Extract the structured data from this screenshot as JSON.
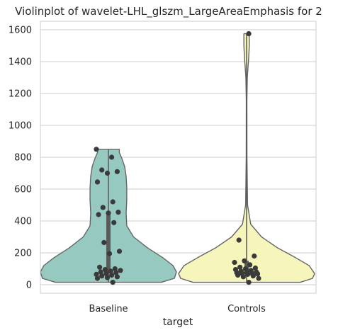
{
  "chart_data": {
    "type": "violin",
    "title": "Violinplot of wavelet-LHL_glszm_LargeAreaEmphasis for 2",
    "xlabel": "target",
    "ylabel": "",
    "categories": [
      "Baseline",
      "Controls"
    ],
    "ylim": [
      -60,
      1650
    ],
    "yticks": [
      0,
      200,
      400,
      600,
      800,
      1000,
      1200,
      1400,
      1600
    ],
    "grid": true,
    "colors": {
      "Baseline": "#96cac1",
      "Controls": "#f6f6bc",
      "points": "#3a3a3a",
      "outline": "#666666"
    },
    "series": [
      {
        "name": "Baseline",
        "points": [
          850,
          800,
          720,
          710,
          700,
          645,
          520,
          485,
          455,
          450,
          440,
          390,
          265,
          210,
          195,
          110,
          100,
          95,
          90,
          85,
          80,
          75,
          70,
          65,
          60,
          55,
          50,
          45,
          40,
          15
        ],
        "violin_range": [
          15,
          850
        ],
        "quartiles": [
          75,
          450
        ]
      },
      {
        "name": "Controls",
        "points": [
          1575,
          280,
          180,
          150,
          140,
          125,
          110,
          105,
          100,
          95,
          90,
          85,
          80,
          78,
          75,
          72,
          70,
          68,
          65,
          60,
          55,
          50,
          40,
          15
        ],
        "violin_range": [
          15,
          1575
        ],
        "quartiles": [
          65,
          150
        ]
      }
    ]
  }
}
